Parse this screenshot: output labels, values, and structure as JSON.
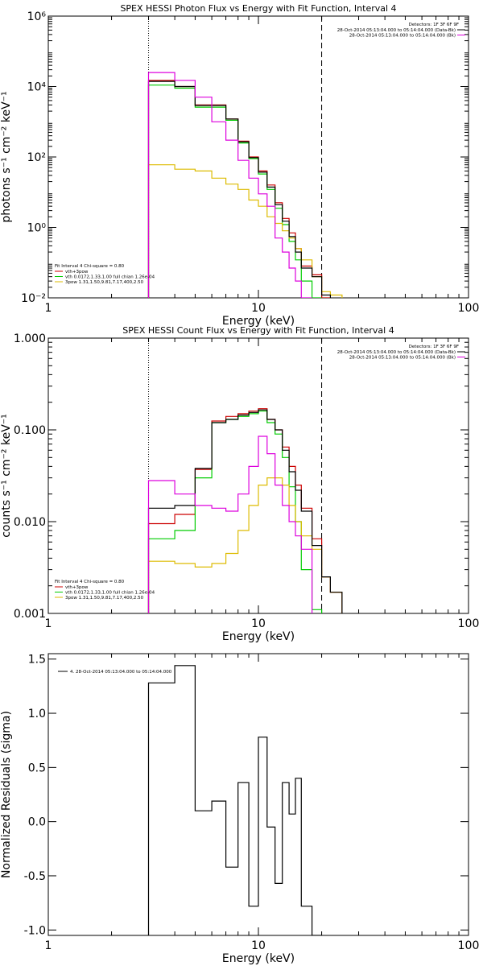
{
  "chart_data": [
    {
      "type": "line",
      "title": "SPEX HESSI Photon Flux vs Energy with Fit Function, Interval 4",
      "xlabel": "Energy (keV)",
      "ylabel": "photons s⁻¹ cm⁻² keV⁻¹",
      "xscale": "log",
      "yscale": "log",
      "xlim": [
        1,
        100
      ],
      "ylim": [
        0.01,
        1000000
      ],
      "xticks": [
        {
          "v": 1,
          "label": "1"
        },
        {
          "v": 10,
          "label": "10"
        },
        {
          "v": 100,
          "label": "100"
        }
      ],
      "yticks": [
        {
          "v": 0.01,
          "label": "10⁻²"
        },
        {
          "v": 1,
          "label": "10⁰"
        },
        {
          "v": 100,
          "label": "10²"
        },
        {
          "v": 10000,
          "label": "10⁴"
        },
        {
          "v": 1000000,
          "label": "10⁶"
        }
      ],
      "vlines": [
        {
          "x": 3,
          "style": "dotted"
        },
        {
          "x": 20,
          "style": "dashed"
        }
      ],
      "edges": [
        3,
        4,
        5,
        6,
        7,
        8,
        9,
        10,
        11,
        12,
        13,
        14,
        15,
        16,
        18,
        20,
        22,
        25
      ],
      "series": [
        {
          "name": "vth+3pow",
          "color": "#cc0000",
          "values": [
            15000,
            10000,
            3000,
            3000,
            1200,
            280,
            100,
            40,
            16,
            5,
            1.8,
            0.7,
            0.25,
            0.08,
            0.045,
            0.01,
            null
          ]
        },
        {
          "name": "vth 0.0172,1.33,1.00 full chian 1.26e-04",
          "color": "#00cc00",
          "values": [
            11000,
            9000,
            2600,
            2600,
            1100,
            250,
            90,
            33,
            12,
            3.5,
            1.2,
            0.4,
            0.12,
            0.03,
            0.01,
            null,
            null
          ]
        },
        {
          "name": "3pow 1.31,1.50,9.81,7.17,400,2.50",
          "color": "#ddbb00",
          "values": [
            60,
            45,
            40,
            25,
            17,
            12,
            6,
            4,
            2,
            1.3,
            0.8,
            0.5,
            0.25,
            0.12,
            0.04,
            0.015,
            0.012
          ]
        },
        {
          "name": "data",
          "color": "#000000",
          "values": [
            14000,
            10000,
            2900,
            2900,
            1200,
            270,
            96,
            37,
            14,
            4.4,
            1.5,
            0.55,
            0.2,
            0.07,
            0.04,
            0.012,
            null
          ]
        },
        {
          "name": "bk",
          "color": "#dd00dd",
          "values": [
            25000,
            15000,
            5000,
            1000,
            300,
            80,
            25,
            9,
            4,
            0.5,
            0.2,
            0.07,
            0.03,
            0.01,
            null,
            null,
            null
          ]
        }
      ],
      "legend": {
        "placement": "bottom-left",
        "header": "Fit Interval 4   Chi-square = 0.80",
        "items": [
          {
            "text": "vth+3pow",
            "color": "#cc0000"
          },
          {
            "text": "vth 0.0172,1.33,1.00 full chian 1.26e-04",
            "color": "#00cc00"
          },
          {
            "text": "3pow 1.31,1.50,9.81,7.17,400,2.50",
            "color": "#ddbb00"
          }
        ]
      },
      "info": {
        "placement": "top-right",
        "detectors": "Detectors: 1F 3F 6F 9F",
        "lines": [
          {
            "text": "28-Oct-2014 05:13:04.000 to 05:14:04.000 (Data-Bk)",
            "color": "#000000"
          },
          {
            "text": "28-Oct-2014 05:13:04.000 to 05:14:04.000 (Bk)",
            "color": "#dd00dd"
          }
        ]
      }
    },
    {
      "type": "line",
      "title": "SPEX HESSI Count Flux vs Energy with Fit Function, Interval 4",
      "xlabel": "Energy (keV)",
      "ylabel": "counts s⁻¹ cm⁻² keV⁻¹",
      "xscale": "log",
      "yscale": "log",
      "xlim": [
        1,
        100
      ],
      "ylim": [
        0.001,
        1.0
      ],
      "xticks": [
        {
          "v": 1,
          "label": "1"
        },
        {
          "v": 10,
          "label": "10"
        },
        {
          "v": 100,
          "label": "100"
        }
      ],
      "yticks": [
        {
          "v": 0.001,
          "label": "0.001"
        },
        {
          "v": 0.01,
          "label": "0.010"
        },
        {
          "v": 0.1,
          "label": "0.100"
        },
        {
          "v": 1,
          "label": "1.000"
        }
      ],
      "vlines": [
        {
          "x": 3,
          "style": "dotted"
        },
        {
          "x": 20,
          "style": "dashed"
        }
      ],
      "edges": [
        3,
        4,
        5,
        6,
        7,
        8,
        9,
        10,
        11,
        12,
        13,
        14,
        15,
        16,
        18,
        20,
        22,
        25
      ],
      "series": [
        {
          "name": "vth+3pow",
          "color": "#cc0000",
          "values": [
            0.0095,
            0.012,
            0.037,
            0.125,
            0.14,
            0.15,
            0.16,
            0.17,
            0.13,
            0.1,
            0.065,
            0.04,
            0.025,
            0.014,
            0.0065,
            0.0025,
            0.0017
          ]
        },
        {
          "name": "vth",
          "color": "#00cc00",
          "values": [
            0.0065,
            0.008,
            0.03,
            0.12,
            0.13,
            0.14,
            0.15,
            0.16,
            0.12,
            0.09,
            0.05,
            0.024,
            0.01,
            0.003,
            0.0011,
            null,
            null
          ]
        },
        {
          "name": "3pow",
          "color": "#ddbb00",
          "values": [
            0.0037,
            0.0035,
            0.0032,
            0.0035,
            0.0045,
            0.008,
            0.015,
            0.025,
            0.03,
            0.03,
            0.025,
            0.015,
            0.01,
            0.007,
            0.005,
            0.0025,
            0.0017
          ]
        },
        {
          "name": "data",
          "color": "#000000",
          "values": [
            0.014,
            0.015,
            0.038,
            0.12,
            0.13,
            0.145,
            0.155,
            0.165,
            0.13,
            0.1,
            0.06,
            0.035,
            0.022,
            0.013,
            0.0055,
            0.0025,
            0.0017
          ]
        },
        {
          "name": "bk",
          "color": "#dd00dd",
          "values": [
            0.028,
            0.02,
            0.015,
            0.014,
            0.013,
            0.02,
            0.04,
            0.085,
            0.055,
            0.025,
            0.015,
            0.01,
            0.007,
            0.005,
            null,
            null,
            null
          ]
        }
      ],
      "legend": {
        "placement": "bottom-left",
        "header": "Fit Interval 4   Chi-square = 0.80",
        "items": [
          {
            "text": "vth+3pow",
            "color": "#cc0000"
          },
          {
            "text": "vth 0.0172,1.33,1.00 full chian 1.26e-04",
            "color": "#00cc00"
          },
          {
            "text": "3pow 1.31,1.50,9.81,7.17,400,2.50",
            "color": "#ddbb00"
          }
        ]
      },
      "info": {
        "placement": "top-right",
        "detectors": "Detectors: 1F 3F 6F 9F",
        "lines": [
          {
            "text": "28-Oct-2014 05:13:04.000 to 05:14:04.000 (Data-Bk)",
            "color": "#000000"
          },
          {
            "text": "28-Oct-2014 05:13:04.000 to 05:14:04.000 (Bk)",
            "color": "#dd00dd"
          }
        ]
      }
    },
    {
      "type": "line",
      "title": "",
      "xlabel": "Energy (keV)",
      "ylabel": "Normalized Residuals (sigma)",
      "xscale": "log",
      "yscale": "linear",
      "xlim": [
        1,
        100
      ],
      "ylim": [
        -1.05,
        1.55
      ],
      "xticks": [
        {
          "v": 1,
          "label": "1"
        },
        {
          "v": 10,
          "label": "10"
        },
        {
          "v": 100,
          "label": "100"
        }
      ],
      "yticks": [
        {
          "v": -1.0,
          "label": "-1.0"
        },
        {
          "v": -0.5,
          "label": "-0.5"
        },
        {
          "v": 0.0,
          "label": "0.0"
        },
        {
          "v": 0.5,
          "label": "0.5"
        },
        {
          "v": 1.0,
          "label": "1.0"
        },
        {
          "v": 1.5,
          "label": "1.5"
        }
      ],
      "edges": [
        3,
        4,
        5,
        6,
        7,
        8,
        9,
        10,
        11,
        12,
        13,
        14,
        15,
        16,
        18,
        20
      ],
      "series": [
        {
          "name": "4. 28-Oct-2014 05:13:04.000 to 05:14:04.000",
          "color": "#000000",
          "values": [
            1.28,
            1.44,
            0.1,
            0.19,
            -0.42,
            0.36,
            -0.78,
            0.78,
            -0.05,
            -0.57,
            0.36,
            0.07,
            0.4,
            -0.78,
            -1.05
          ]
        }
      ],
      "legend": {
        "placement": "top-left",
        "items": [
          {
            "text": "4. 28-Oct-2014 05:13:04.000 to 05:14:04.000",
            "color": "#000000"
          }
        ]
      }
    }
  ]
}
